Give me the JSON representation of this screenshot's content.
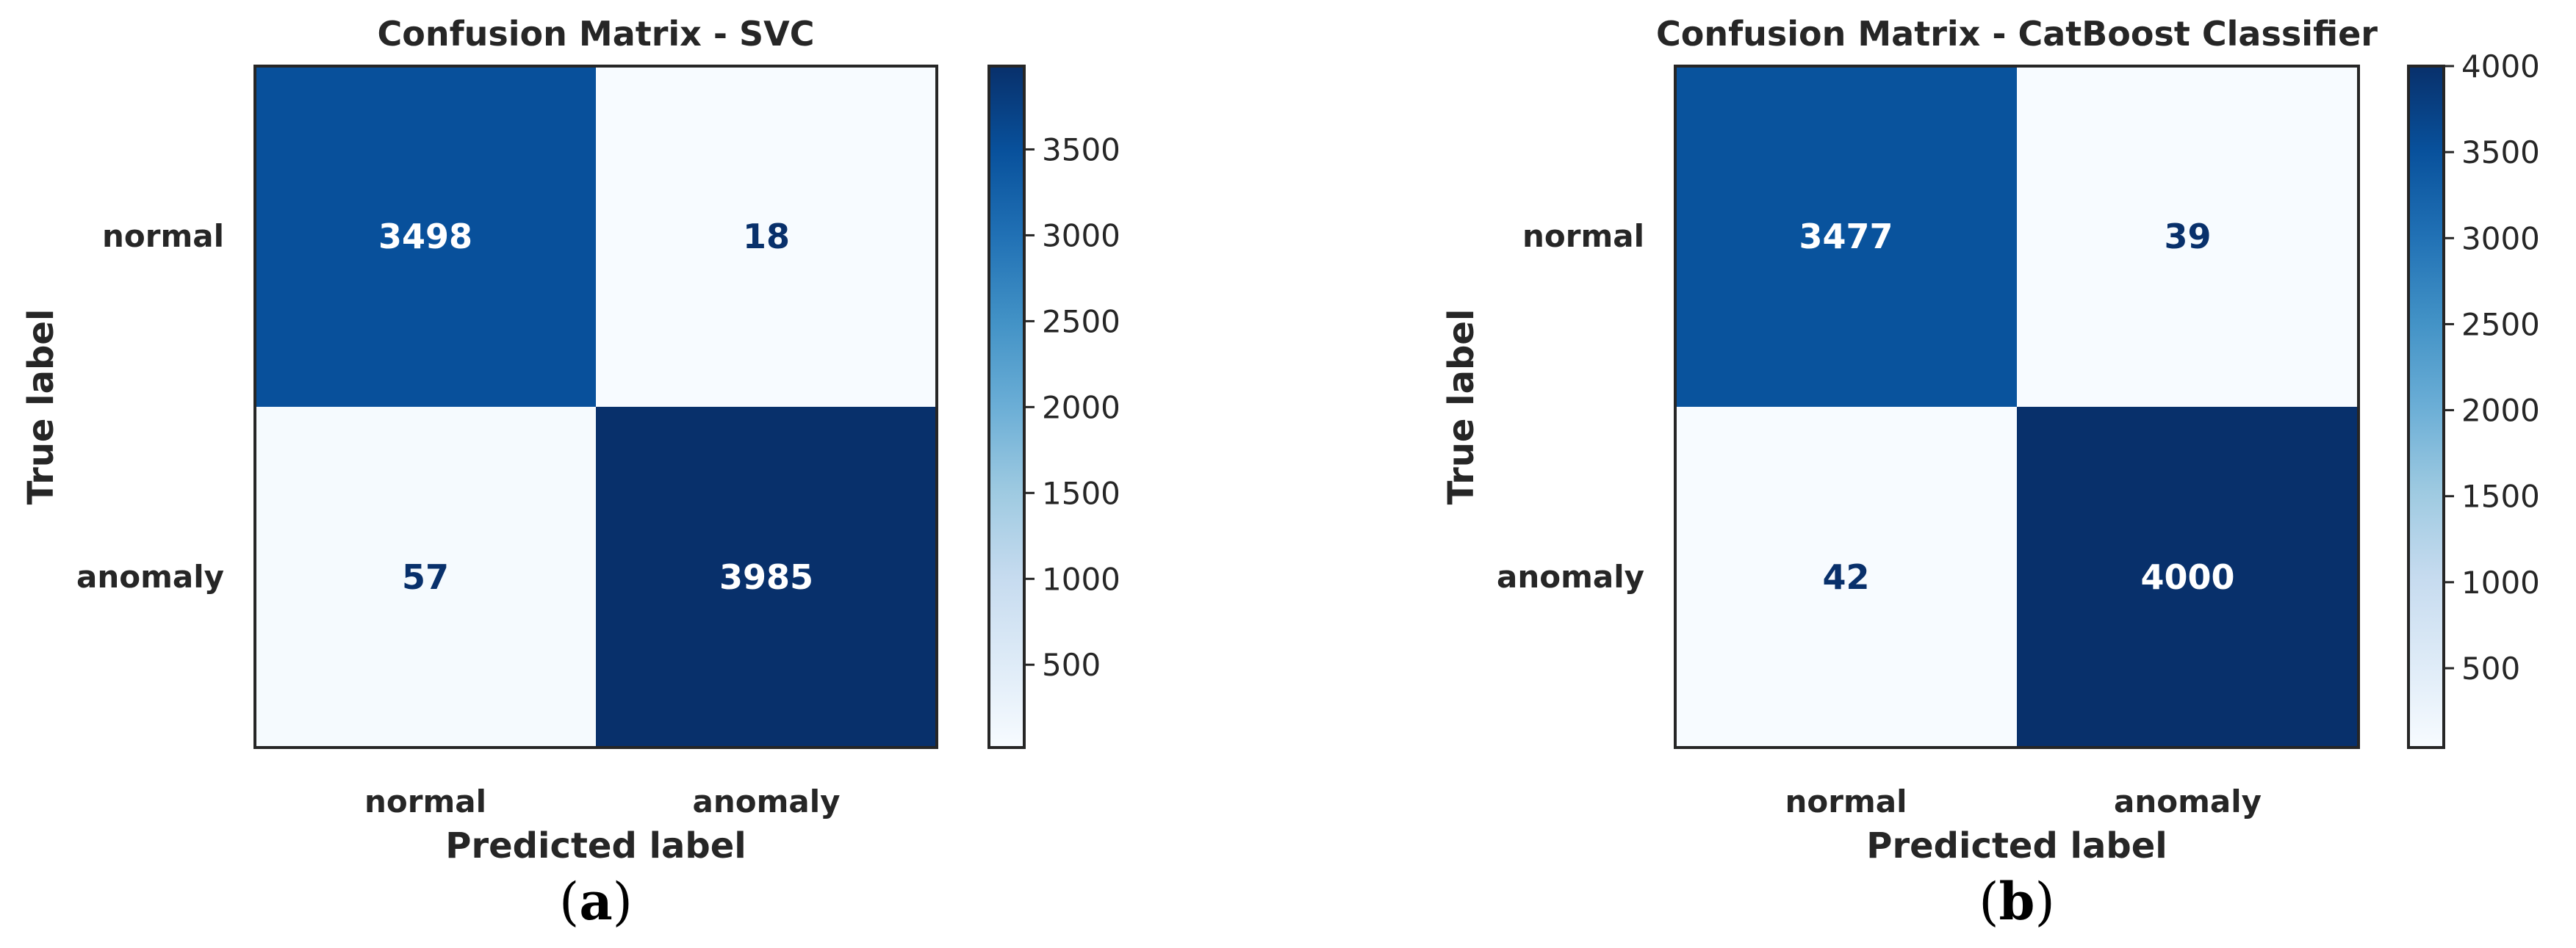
{
  "chart_data": [
    {
      "type": "heatmap",
      "title": "Confusion Matrix - SVC",
      "xlabel": "Predicted label",
      "ylabel": "True label",
      "x_categories": [
        "normal",
        "anomaly"
      ],
      "y_categories": [
        "normal",
        "anomaly"
      ],
      "values": [
        [
          3498,
          18
        ],
        [
          57,
          3985
        ]
      ],
      "colormap": "Blues",
      "colorbar_ticks": [
        500,
        1000,
        1500,
        2000,
        2500,
        3000,
        3500
      ],
      "colorbar_range": [
        18,
        3985
      ],
      "caption": {
        "open": "(",
        "letter": "a",
        "close": ")"
      }
    },
    {
      "type": "heatmap",
      "title": "Confusion Matrix - CatBoost Classifier",
      "xlabel": "Predicted label",
      "ylabel": "True label",
      "x_categories": [
        "normal",
        "anomaly"
      ],
      "y_categories": [
        "normal",
        "anomaly"
      ],
      "values": [
        [
          3477,
          39
        ],
        [
          42,
          4000
        ]
      ],
      "colormap": "Blues",
      "colorbar_ticks": [
        500,
        1000,
        1500,
        2000,
        2500,
        3000,
        3500,
        4000
      ],
      "colorbar_range": [
        39,
        4000
      ],
      "caption": {
        "open": "(",
        "letter": "b",
        "close": ")"
      }
    }
  ],
  "colors": {
    "text": "#262626",
    "frame": "#262626",
    "dark_cell_text": "#ffffff",
    "light_cell_text": "#08306b"
  }
}
